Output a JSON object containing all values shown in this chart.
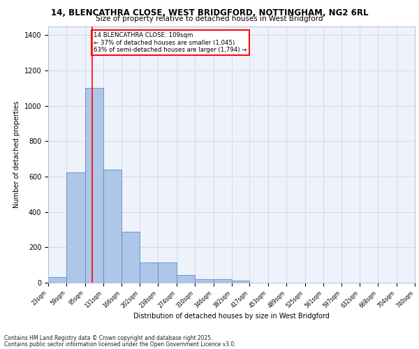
{
  "title1": "14, BLENCATHRA CLOSE, WEST BRIDGFORD, NOTTINGHAM, NG2 6RL",
  "title2": "Size of property relative to detached houses in West Bridgford",
  "xlabel": "Distribution of detached houses by size in West Bridgford",
  "ylabel": "Number of detached properties",
  "bin_edges": [
    23,
    59,
    95,
    131,
    166,
    202,
    238,
    274,
    310,
    346,
    382,
    417,
    453,
    489,
    525,
    561,
    597,
    632,
    668,
    704,
    740
  ],
  "bar_heights": [
    30,
    625,
    1100,
    640,
    290,
    115,
    115,
    45,
    20,
    20,
    10,
    0,
    0,
    0,
    0,
    0,
    0,
    0,
    0,
    0
  ],
  "bar_color": "#aec6e8",
  "bar_edge_color": "#5a8fc0",
  "vline_x": 109,
  "vline_color": "red",
  "annotation_title": "14 BLENCATHRA CLOSE: 109sqm",
  "annotation_line1": "← 37% of detached houses are smaller (1,045)",
  "annotation_line2": "63% of semi-detached houses are larger (1,794) →",
  "xlim": [
    23,
    740
  ],
  "ylim": [
    0,
    1450
  ],
  "yticks": [
    0,
    200,
    400,
    600,
    800,
    1000,
    1200,
    1400
  ],
  "bg_color": "#eef2fb",
  "grid_color": "#c8d0e8",
  "footnote1": "Contains HM Land Registry data © Crown copyright and database right 2025.",
  "footnote2": "Contains public sector information licensed under the Open Government Licence v3.0."
}
